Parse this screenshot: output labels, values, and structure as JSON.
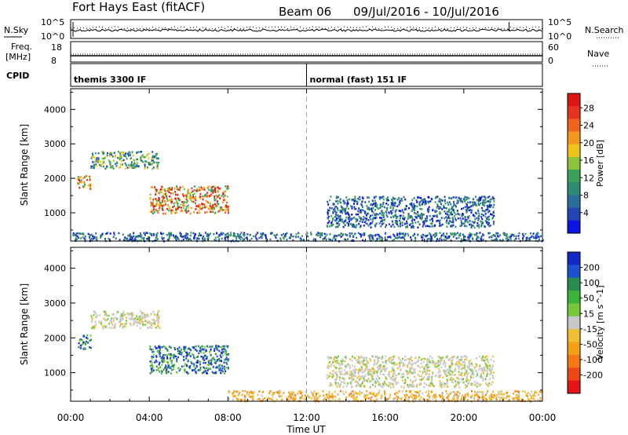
{
  "header": {
    "station": "Fort Hays East (fitACF)",
    "beam": "Beam 06",
    "dates": "09/Jul/2016 - 10/Jul/2016"
  },
  "top_panels": {
    "nsky_label": "N.Sky",
    "nsearch_label": "N.Search",
    "nsky_ticks": [
      "10^5",
      "10^0"
    ],
    "nsearch_ticks": [
      "10^5",
      "10^0"
    ],
    "freq_label_1": "Freq.",
    "freq_label_2": "[MHz]",
    "freq_ticks": [
      "18",
      "8"
    ],
    "nave_label": "Nave",
    "nave_ticks": [
      "60",
      "0"
    ],
    "cpid_label": "CPID",
    "cpid_segments": [
      {
        "start_hour": 0,
        "label": "themis 3300 IF"
      },
      {
        "start_hour": 12,
        "label": "normal (fast) 151 IF"
      }
    ]
  },
  "chart_data": [
    {
      "type": "heatmap",
      "title": "",
      "ylabel": "Slant Range [km]",
      "xlabel": "",
      "ylim": [
        180,
        4600
      ],
      "xlim": [
        0,
        24
      ],
      "yticks": [
        "1000",
        "2000",
        "3000",
        "4000"
      ],
      "colorbar": {
        "label": "Power [dB]",
        "ticks": [
          "4",
          "8",
          "12",
          "16",
          "20",
          "24",
          "28"
        ],
        "colors": [
          "#0a14e6",
          "#2345b5",
          "#2c6e9a",
          "#2f8a74",
          "#3aa05a",
          "#8cc43c",
          "#f0c416",
          "#f5961e",
          "#f0641e",
          "#e6321e",
          "#dc1414"
        ]
      },
      "features": [
        {
          "hours": [
            1.0,
            4.5
          ],
          "range_km": [
            2300,
            2800
          ],
          "level": "low-mid"
        },
        {
          "hours": [
            0.3,
            1.0
          ],
          "range_km": [
            1700,
            2100
          ],
          "level": "high"
        },
        {
          "hours": [
            4.0,
            8.0
          ],
          "range_km": [
            1000,
            1800
          ],
          "level": "high"
        },
        {
          "hours": [
            13.0,
            21.5
          ],
          "range_km": [
            600,
            1500
          ],
          "level": "low"
        },
        {
          "hours": [
            0.0,
            24.0
          ],
          "range_km": [
            200,
            450
          ],
          "level": "low"
        }
      ]
    },
    {
      "type": "heatmap",
      "title": "",
      "ylabel": "Slant Range [km]",
      "xlabel": "Time UT",
      "ylim": [
        180,
        4600
      ],
      "xlim": [
        0,
        24
      ],
      "yticks": [
        "1000",
        "2000",
        "3000",
        "4000"
      ],
      "xticks": [
        "00:00",
        "04:00",
        "08:00",
        "12:00",
        "16:00",
        "20:00",
        "00:00"
      ],
      "colorbar": {
        "label": "Velocity [m s^-1]",
        "ticks": [
          "200",
          "100",
          "50",
          "15",
          "-15",
          "-50",
          "-100",
          "-200"
        ],
        "colors": [
          "#1428c8",
          "#1e50d2",
          "#288c50",
          "#3cb43c",
          "#78c83c",
          "#c8c8c8",
          "#f0be32",
          "#f5a014",
          "#f57814",
          "#f04614",
          "#e61414"
        ]
      },
      "features": [
        {
          "hours": [
            1.0,
            4.5
          ],
          "range_km": [
            2300,
            2800
          ],
          "level": "near-zero"
        },
        {
          "hours": [
            0.3,
            1.0
          ],
          "range_km": [
            1700,
            2100
          ],
          "level": "positive"
        },
        {
          "hours": [
            4.0,
            8.0
          ],
          "range_km": [
            1000,
            1800
          ],
          "level": "positive"
        },
        {
          "hours": [
            13.0,
            21.5
          ],
          "range_km": [
            600,
            1500
          ],
          "level": "near-zero"
        },
        {
          "hours": [
            8.0,
            24.0
          ],
          "range_km": [
            200,
            500
          ],
          "level": "negative"
        }
      ]
    }
  ]
}
